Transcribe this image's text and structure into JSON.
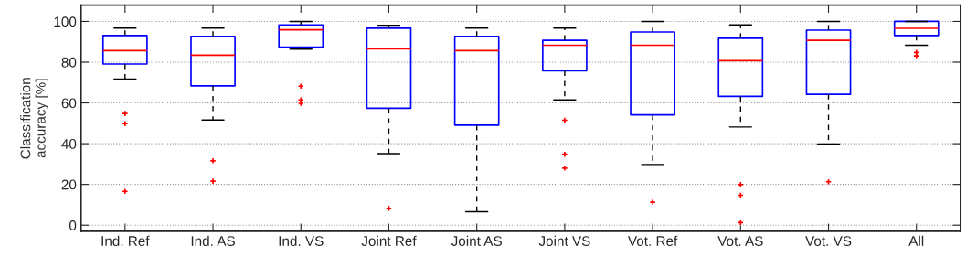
{
  "chart_data": {
    "type": "box",
    "ylabel": "Classification\naccuracy [%]",
    "categories": [
      "Ind. Ref",
      "Ind. AS",
      "Ind. VS",
      "Joint Ref",
      "Joint AS",
      "Joint VS",
      "Vot. Ref",
      "Vot. AS",
      "Vot. VS",
      "All"
    ],
    "boxes": [
      {
        "low": 71.7,
        "q1": 79.1,
        "median": 85.7,
        "q3": 93.1,
        "high": 96.7,
        "outliers": [
          54.8,
          49.8,
          16.6
        ]
      },
      {
        "low": 51.6,
        "q1": 68.4,
        "median": 83.4,
        "q3": 92.6,
        "high": 96.7,
        "outliers": [
          31.6,
          21.6
        ]
      },
      {
        "low": 86.4,
        "q1": 87.4,
        "median": 95.9,
        "q3": 98.3,
        "high": 100,
        "outliers": [
          68.2,
          61.5,
          59.8
        ]
      },
      {
        "low": 35.1,
        "q1": 57.4,
        "median": 86.6,
        "q3": 96.7,
        "high": 98.1,
        "outliers": [
          8.3
        ]
      },
      {
        "low": 6.6,
        "q1": 49.1,
        "median": 85.7,
        "q3": 92.6,
        "high": 96.7
      },
      {
        "low": 61.5,
        "q1": 75.8,
        "median": 88.3,
        "q3": 90.7,
        "high": 96.7,
        "outliers": [
          51.5,
          34.8,
          28.0
        ]
      },
      {
        "low": 29.8,
        "q1": 54.1,
        "median": 88.3,
        "q3": 94.8,
        "high": 100,
        "outliers": [
          11.3
        ]
      },
      {
        "low": 48.2,
        "q1": 63.2,
        "median": 80.7,
        "q3": 91.7,
        "high": 98.3,
        "outliers": [
          19.9,
          14.7,
          1.3
        ]
      },
      {
        "low": 39.9,
        "q1": 64.2,
        "median": 90.7,
        "q3": 95.7,
        "high": 100,
        "outliers": [
          21.3
        ]
      },
      {
        "low": 88.3,
        "q1": 93.1,
        "median": 96.6,
        "q3": 100,
        "high": 100,
        "outliers": [
          84.8,
          83.1
        ]
      }
    ],
    "color": "#0000ff",
    "ylim": [
      -3,
      108
    ],
    "yticks": [
      0,
      20,
      40,
      60,
      80,
      100
    ],
    "grid": "y"
  }
}
